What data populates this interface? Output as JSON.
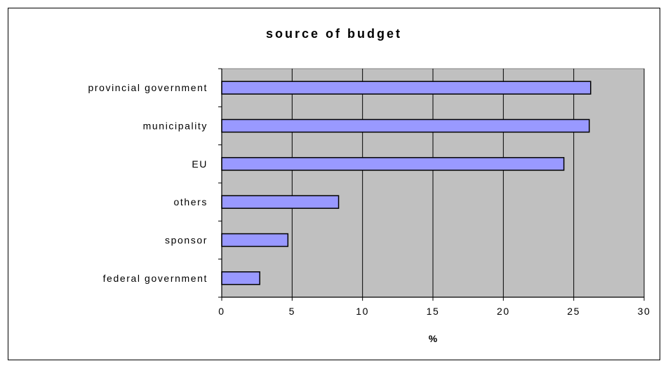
{
  "chart_data": {
    "type": "bar",
    "orientation": "horizontal",
    "title": "source of budget",
    "xlabel": "%",
    "ylabel": "",
    "xlim": [
      0,
      30
    ],
    "xticks": [
      "0",
      "5",
      "10",
      "15",
      "20",
      "25",
      "30"
    ],
    "categories": [
      "provincial government",
      "municipality",
      "EU",
      "others",
      "sponsor",
      "federal government"
    ],
    "values": [
      26.2,
      26.1,
      24.3,
      8.3,
      4.7,
      2.7
    ],
    "grid": true,
    "legend": "none",
    "colors": {
      "bar_fill": "#9999ff",
      "bar_stroke": "#000000",
      "plot_background": "#c0c0c0",
      "gridline": "#000000"
    }
  }
}
